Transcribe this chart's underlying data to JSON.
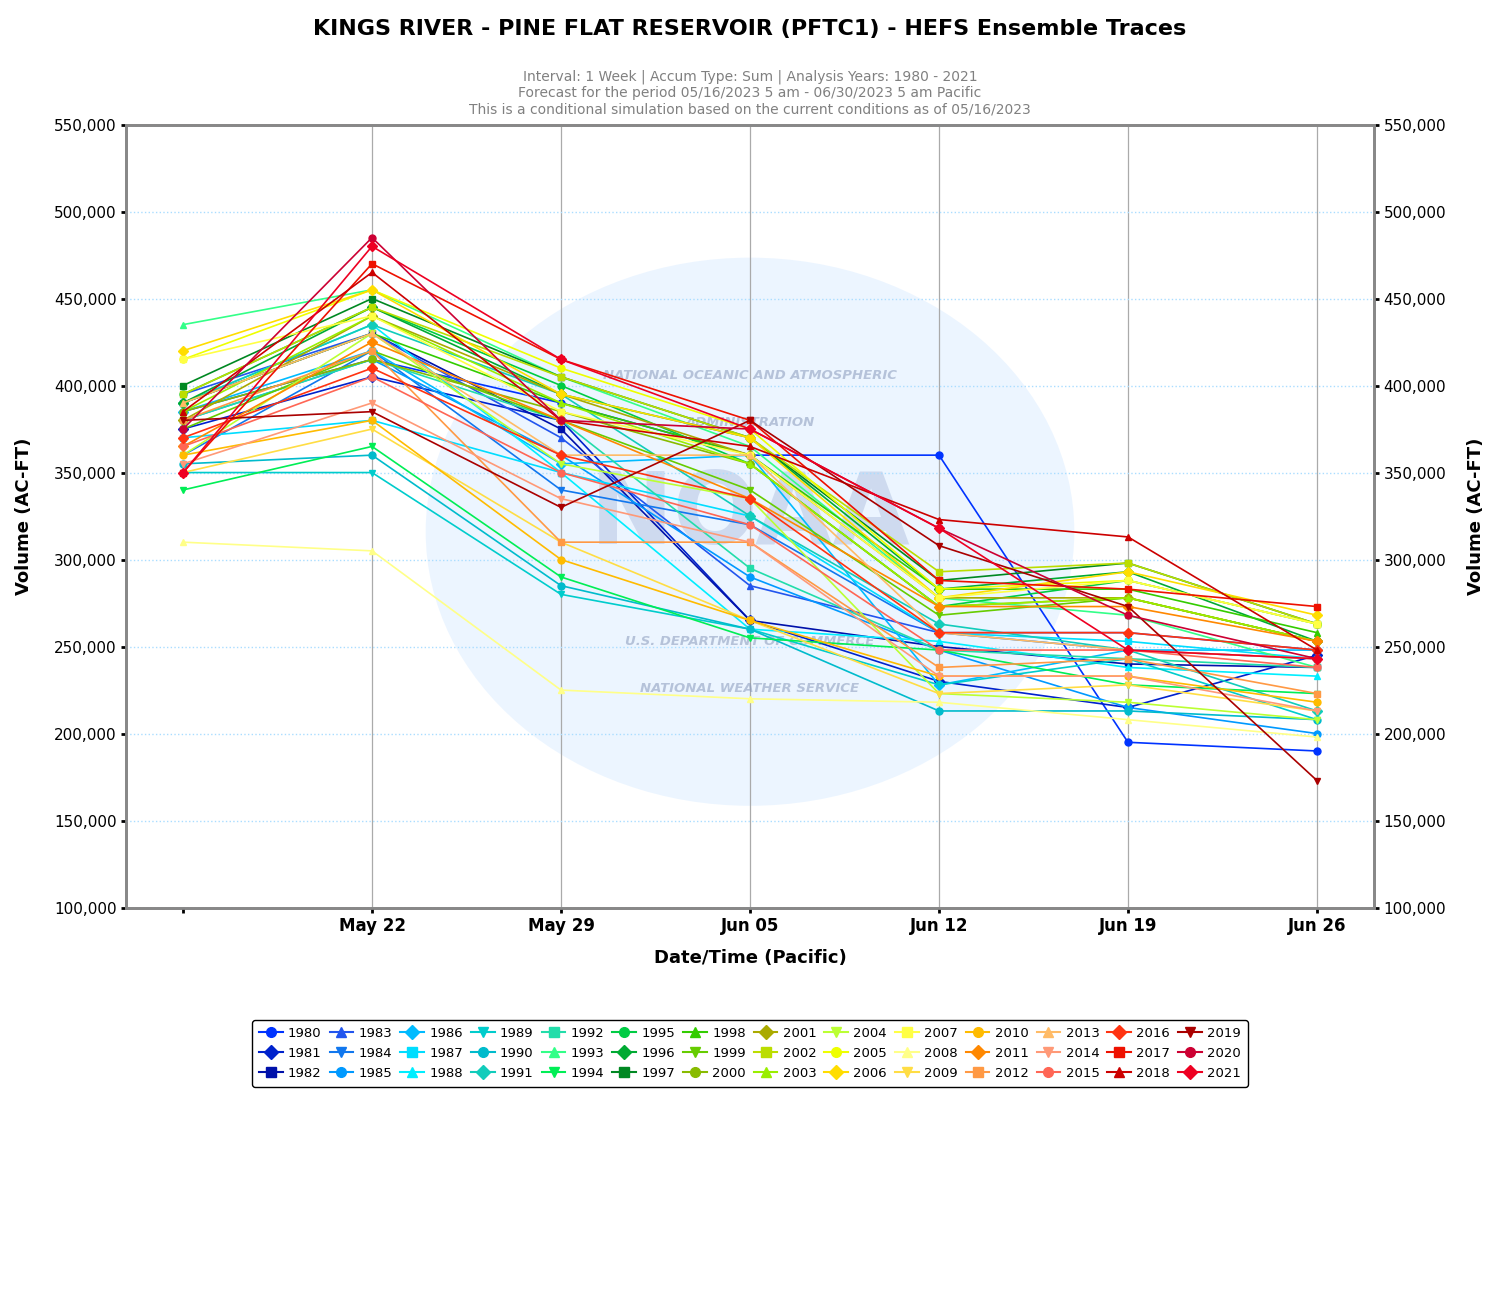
{
  "title": "KINGS RIVER - PINE FLAT RESERVOIR (PFTC1) - HEFS Ensemble Traces",
  "subtitle1": "Interval: 1 Week | Accum Type: Sum | Analysis Years: 1980 - 2021",
  "subtitle2": "Forecast for the period 05/16/2023 5 am - 06/30/2023 5 am Pacific",
  "subtitle3": "This is a conditional simulation based on the current conditions as of 05/16/2023",
  "xlabel": "Date/Time (Pacific)",
  "ylabel": "Volume (AC-FT)",
  "xtick_positions": [
    1,
    2,
    3,
    4,
    5,
    6
  ],
  "xtick_labels": [
    "May 22",
    "May 29",
    "Jun 05",
    "Jun 12",
    "Jun 19",
    "Jun 26"
  ],
  "vline_positions": [
    1,
    2,
    3,
    4,
    5,
    6
  ],
  "ylim": [
    100000,
    550000
  ],
  "yticks": [
    100000,
    150000,
    200000,
    250000,
    300000,
    350000,
    400000,
    450000,
    500000,
    550000
  ],
  "year_colors": {
    "1980": "#0033FF",
    "1981": "#0022CC",
    "1982": "#0011AA",
    "1983": "#2255EE",
    "1984": "#1177EE",
    "1985": "#0099FF",
    "1986": "#00BBFF",
    "1987": "#00DDFF",
    "1988": "#00EEFF",
    "1989": "#00CCCC",
    "1990": "#00BBCC",
    "1991": "#11CCBB",
    "1992": "#22DDAA",
    "1993": "#33FF88",
    "1994": "#00EE55",
    "1995": "#00CC44",
    "1996": "#00AA33",
    "1997": "#008822",
    "1998": "#33CC00",
    "1999": "#66CC00",
    "2000": "#88BB00",
    "2001": "#AAAA00",
    "2002": "#BBDD00",
    "2003": "#99EE00",
    "2004": "#BBFF33",
    "2005": "#EEFF00",
    "2006": "#FFDD00",
    "2007": "#FFFF44",
    "2008": "#FFFF88",
    "2009": "#FFDD44",
    "2010": "#FFBB00",
    "2011": "#FF8800",
    "2012": "#FF9944",
    "2013": "#FFBB66",
    "2014": "#FF9977",
    "2015": "#FF6655",
    "2016": "#FF3311",
    "2017": "#EE1100",
    "2018": "#CC0000",
    "2019": "#AA0000",
    "2020": "#CC0033",
    "2021": "#EE0022"
  },
  "year_markers": {
    "1980": "o",
    "1981": "D",
    "1982": "s",
    "1983": "^",
    "1984": "v",
    "1985": "o",
    "1986": "D",
    "1987": "s",
    "1988": "^",
    "1989": "v",
    "1990": "o",
    "1991": "D",
    "1992": "s",
    "1993": "^",
    "1994": "v",
    "1995": "o",
    "1996": "D",
    "1997": "s",
    "1998": "^",
    "1999": "v",
    "2000": "o",
    "2001": "D",
    "2002": "s",
    "2003": "^",
    "2004": "v",
    "2005": "o",
    "2006": "D",
    "2007": "s",
    "2008": "^",
    "2009": "v",
    "2010": "o",
    "2011": "D",
    "2012": "s",
    "2013": "^",
    "2014": "v",
    "2015": "o",
    "2016": "D",
    "2017": "s",
    "2018": "^",
    "2019": "v",
    "2020": "o",
    "2021": "D"
  },
  "ensemble_data": {
    "1980": [
      385000,
      415000,
      390000,
      360000,
      360000,
      195000,
      190000
    ],
    "1981": [
      375000,
      405000,
      380000,
      265000,
      230000,
      215000,
      245000
    ],
    "1982": [
      390000,
      430000,
      375000,
      265000,
      250000,
      240000,
      238000
    ],
    "1983": [
      395000,
      430000,
      370000,
      285000,
      258000,
      258000,
      248000
    ],
    "1984": [
      360000,
      420000,
      340000,
      320000,
      258000,
      248000,
      243000
    ],
    "1985": [
      380000,
      415000,
      360000,
      290000,
      248000,
      215000,
      200000
    ],
    "1986": [
      385000,
      420000,
      355000,
      360000,
      228000,
      248000,
      248000
    ],
    "1987": [
      370000,
      380000,
      350000,
      325000,
      258000,
      253000,
      243000
    ],
    "1988": [
      390000,
      435000,
      350000,
      260000,
      253000,
      238000,
      233000
    ],
    "1989": [
      350000,
      350000,
      280000,
      260000,
      228000,
      243000,
      208000
    ],
    "1990": [
      355000,
      360000,
      285000,
      260000,
      213000,
      213000,
      208000
    ],
    "1991": [
      390000,
      435000,
      395000,
      325000,
      263000,
      248000,
      213000
    ],
    "1992": [
      380000,
      415000,
      380000,
      295000,
      248000,
      243000,
      238000
    ],
    "1993": [
      435000,
      455000,
      405000,
      365000,
      278000,
      268000,
      238000
    ],
    "1994": [
      340000,
      365000,
      290000,
      255000,
      248000,
      228000,
      223000
    ],
    "1995": [
      395000,
      445000,
      400000,
      355000,
      273000,
      288000,
      263000
    ],
    "1996": [
      390000,
      445000,
      395000,
      370000,
      283000,
      293000,
      253000
    ],
    "1997": [
      400000,
      450000,
      405000,
      370000,
      288000,
      298000,
      263000
    ],
    "1998": [
      390000,
      430000,
      390000,
      360000,
      283000,
      283000,
      258000
    ],
    "1999": [
      375000,
      420000,
      380000,
      340000,
      268000,
      278000,
      253000
    ],
    "2000": [
      385000,
      415000,
      385000,
      355000,
      273000,
      278000,
      253000
    ],
    "2001": [
      380000,
      440000,
      395000,
      360000,
      278000,
      278000,
      253000
    ],
    "2002": [
      395000,
      445000,
      405000,
      370000,
      293000,
      298000,
      263000
    ],
    "2003": [
      385000,
      440000,
      390000,
      355000,
      273000,
      278000,
      253000
    ],
    "2004": [
      360000,
      430000,
      355000,
      335000,
      223000,
      218000,
      208000
    ],
    "2005": [
      415000,
      455000,
      410000,
      375000,
      283000,
      288000,
      263000
    ],
    "2006": [
      420000,
      455000,
      395000,
      370000,
      278000,
      293000,
      268000
    ],
    "2007": [
      415000,
      440000,
      385000,
      360000,
      278000,
      288000,
      263000
    ],
    "2008": [
      310000,
      305000,
      225000,
      220000,
      218000,
      208000,
      198000
    ],
    "2009": [
      350000,
      375000,
      310000,
      265000,
      223000,
      228000,
      213000
    ],
    "2010": [
      360000,
      380000,
      300000,
      265000,
      233000,
      233000,
      218000
    ],
    "2011": [
      365000,
      425000,
      380000,
      335000,
      273000,
      273000,
      253000
    ],
    "2012": [
      380000,
      420000,
      310000,
      310000,
      238000,
      243000,
      223000
    ],
    "2013": [
      390000,
      430000,
      360000,
      360000,
      258000,
      248000,
      243000
    ],
    "2014": [
      355000,
      390000,
      335000,
      310000,
      233000,
      233000,
      213000
    ],
    "2015": [
      365000,
      405000,
      350000,
      320000,
      248000,
      248000,
      238000
    ],
    "2016": [
      370000,
      410000,
      360000,
      335000,
      258000,
      258000,
      248000
    ],
    "2017": [
      350000,
      470000,
      415000,
      380000,
      288000,
      283000,
      273000
    ],
    "2018": [
      385000,
      465000,
      380000,
      365000,
      323000,
      313000,
      248000
    ],
    "2019": [
      380000,
      385000,
      330000,
      380000,
      308000,
      273000,
      173000
    ],
    "2020": [
      375000,
      485000,
      380000,
      375000,
      318000,
      268000,
      243000
    ],
    "2021": [
      350000,
      480000,
      415000,
      375000,
      318000,
      248000,
      243000
    ]
  }
}
